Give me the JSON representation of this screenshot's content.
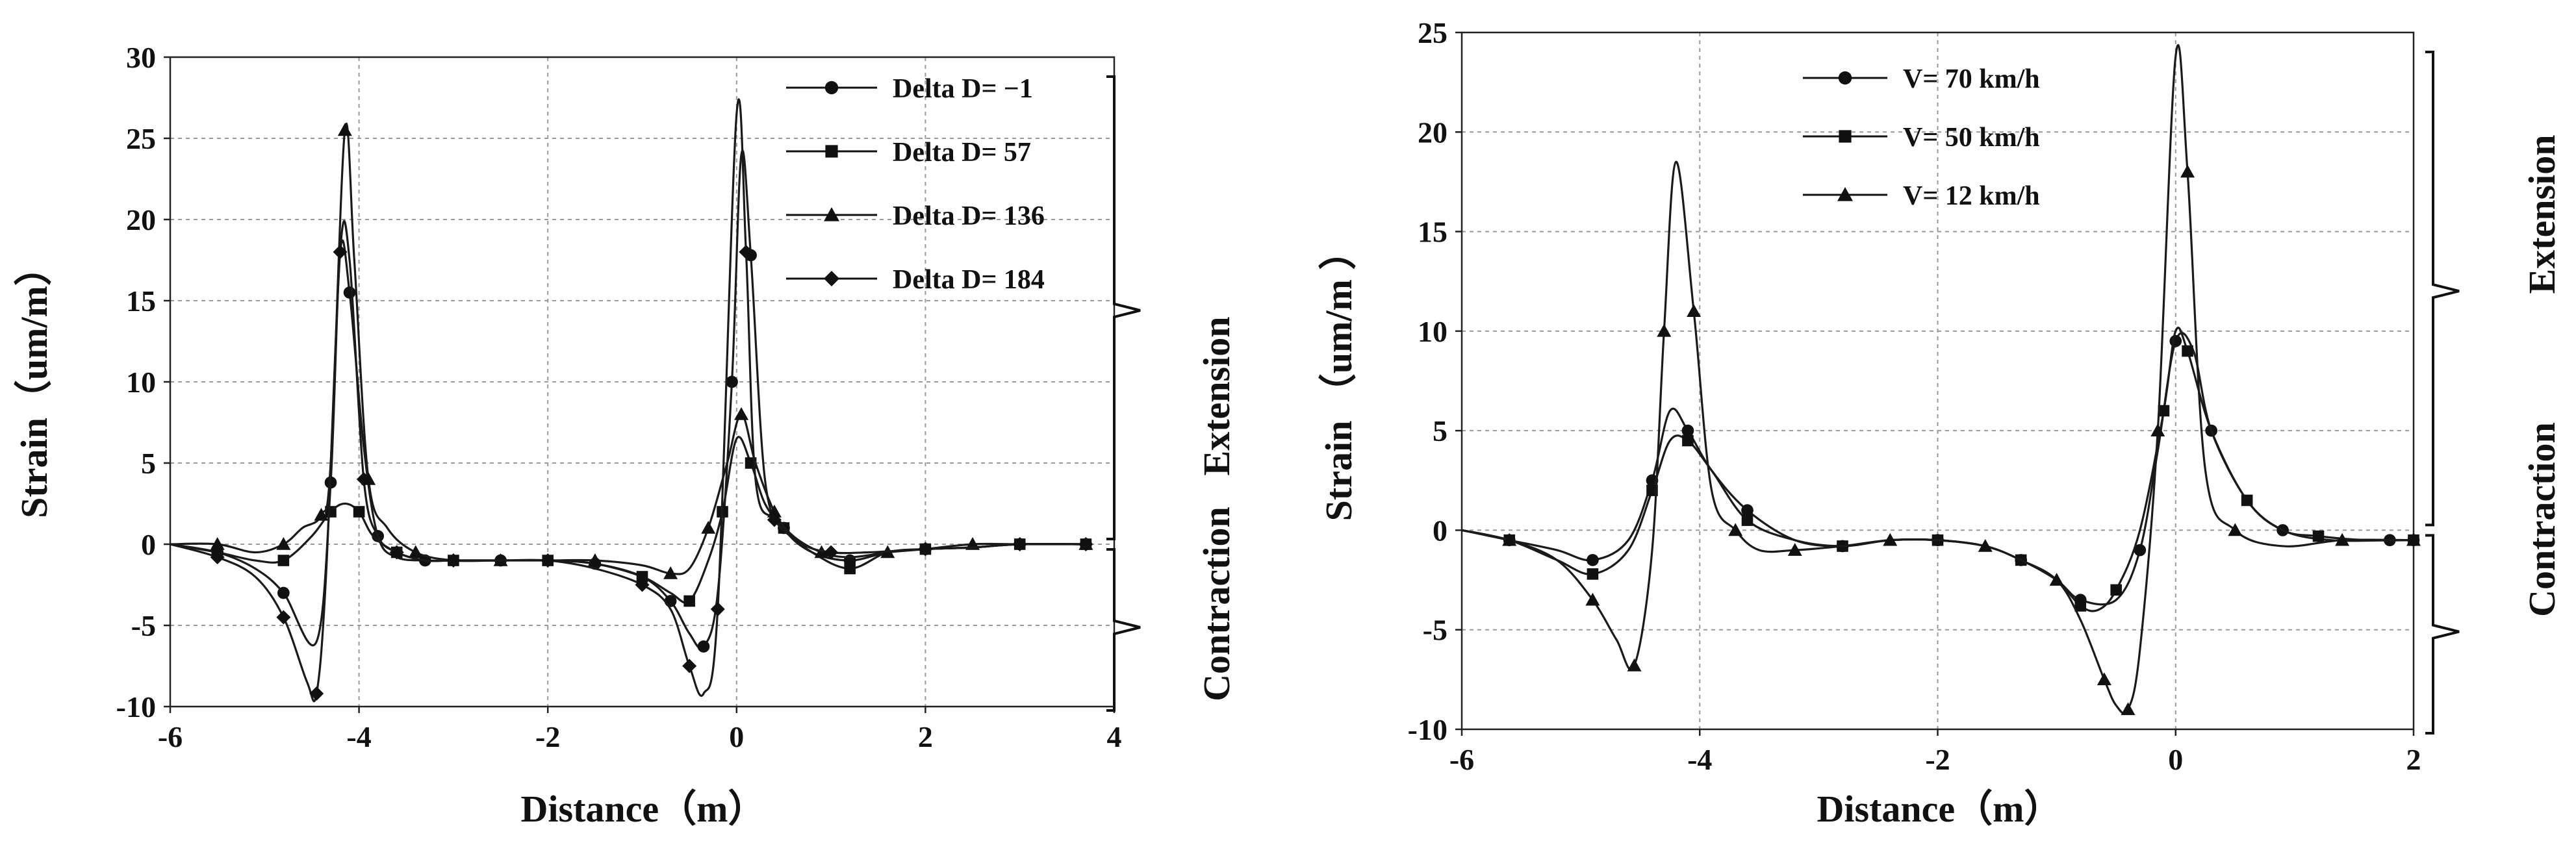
{
  "chart_data": [
    {
      "type": "line",
      "title": "",
      "xlabel": "Distance（m）",
      "ylabel": "Strain（um/m）",
      "xlim": [
        -6,
        4
      ],
      "ylim": [
        -10,
        30
      ],
      "x_ticks": [
        "-6",
        "-4",
        "-2",
        "0",
        "2",
        "4"
      ],
      "y_ticks": [
        "-10",
        "-5",
        "0",
        "5",
        "10",
        "15",
        "20",
        "25",
        "30"
      ],
      "grid": true,
      "legend_position": "top-right",
      "annotations": [
        "Extension",
        "Contraction"
      ],
      "series": [
        {
          "name": "Delta D= −1",
          "marker": "circle",
          "x": [
            -6.0,
            -5.5,
            -5.1,
            -4.8,
            -4.45,
            -4.3,
            -4.2,
            -4.1,
            -3.95,
            -3.8,
            -3.6,
            -3.3,
            -3.0,
            -2.5,
            -2.0,
            -1.5,
            -1.0,
            -0.7,
            -0.5,
            -0.35,
            -0.2,
            -0.05,
            0.05,
            0.15,
            0.3,
            0.5,
            0.8,
            1.2,
            1.6,
            2.0,
            2.5,
            3.0,
            3.7
          ],
          "y": [
            0,
            -0.5,
            -1.5,
            -3.0,
            -6.0,
            3.8,
            18.0,
            15.5,
            6.0,
            0.5,
            -0.8,
            -1.0,
            -1.0,
            -1.0,
            -1.0,
            -1.2,
            -2.0,
            -3.5,
            -5.5,
            -6.3,
            -3.0,
            10.0,
            24.0,
            17.8,
            4.0,
            1.0,
            -0.5,
            -1.0,
            -0.5,
            -0.3,
            -0.2,
            0,
            0
          ]
        },
        {
          "name": "Delta D= 57",
          "marker": "square",
          "x": [
            -6.0,
            -5.5,
            -5.1,
            -4.8,
            -4.5,
            -4.3,
            -4.15,
            -4.0,
            -3.85,
            -3.6,
            -3.3,
            -3.0,
            -2.5,
            -2.0,
            -1.5,
            -1.0,
            -0.7,
            -0.5,
            -0.3,
            -0.15,
            0.0,
            0.15,
            0.3,
            0.5,
            0.8,
            1.2,
            1.6,
            2.0,
            2.5,
            3.0,
            3.7
          ],
          "y": [
            0,
            -0.5,
            -1.0,
            -1.0,
            0.5,
            2.0,
            2.5,
            2.0,
            0.5,
            -0.5,
            -1.0,
            -1.0,
            -1.0,
            -1.0,
            -1.2,
            -2.0,
            -3.0,
            -3.5,
            -1.0,
            2.0,
            6.5,
            5.0,
            2.5,
            1.0,
            -0.5,
            -1.5,
            -0.5,
            -0.3,
            -0.2,
            0,
            0
          ]
        },
        {
          "name": "Delta D= 136",
          "marker": "triangle",
          "x": [
            -6.0,
            -5.5,
            -5.1,
            -4.8,
            -4.6,
            -4.4,
            -4.3,
            -4.15,
            -4.05,
            -3.9,
            -3.7,
            -3.4,
            -3.0,
            -2.5,
            -2.0,
            -1.5,
            -1.0,
            -0.7,
            -0.5,
            -0.3,
            -0.1,
            0.05,
            0.2,
            0.4,
            0.6,
            0.9,
            1.2,
            1.6,
            2.0,
            2.5,
            3.0,
            3.7
          ],
          "y": [
            0,
            0,
            -0.5,
            0,
            1.0,
            1.8,
            5.0,
            25.5,
            17.5,
            4.0,
            1.0,
            -0.5,
            -1.0,
            -1.0,
            -1.0,
            -1.0,
            -1.3,
            -1.8,
            -1.5,
            1.0,
            5.0,
            8.0,
            5.0,
            2.0,
            0.5,
            -0.5,
            -0.8,
            -0.5,
            -0.3,
            0,
            0,
            0
          ]
        },
        {
          "name": "Delta D= 184",
          "marker": "diamond",
          "x": [
            -6.0,
            -5.5,
            -5.1,
            -4.8,
            -4.55,
            -4.45,
            -4.35,
            -4.2,
            -4.1,
            -3.95,
            -3.8,
            -3.6,
            -3.3,
            -3.0,
            -2.5,
            -2.0,
            -1.5,
            -1.0,
            -0.7,
            -0.5,
            -0.35,
            -0.2,
            0.0,
            0.1,
            0.2,
            0.4,
            0.7,
            1.0,
            1.4,
            2.0,
            2.5,
            3.0,
            3.7
          ],
          "y": [
            0,
            -0.8,
            -2.0,
            -4.5,
            -8.5,
            -9.2,
            -2.0,
            18.0,
            17.5,
            4.0,
            0.5,
            -0.5,
            -1.0,
            -1.0,
            -1.0,
            -1.0,
            -1.5,
            -2.5,
            -4.0,
            -7.5,
            -9.2,
            -4.0,
            26.5,
            18.0,
            4.0,
            1.5,
            0,
            -0.5,
            -0.5,
            -0.3,
            -0.2,
            0,
            0
          ]
        }
      ]
    },
    {
      "type": "line",
      "title": "",
      "xlabel": "Distance（m）",
      "ylabel": "Strain （um/m ）",
      "xlim": [
        -6,
        2
      ],
      "ylim": [
        -10,
        25
      ],
      "x_ticks": [
        "-6",
        "-4",
        "-2",
        "0",
        "2"
      ],
      "y_ticks": [
        "-10",
        "-5",
        "0",
        "5",
        "10",
        "15",
        "20",
        "25"
      ],
      "grid": true,
      "legend_position": "top-left",
      "annotations": [
        "Extension",
        "Contraction"
      ],
      "series": [
        {
          "name": "V= 70 km/h",
          "marker": "circle",
          "x": [
            -6.0,
            -5.6,
            -5.2,
            -4.9,
            -4.6,
            -4.4,
            -4.25,
            -4.1,
            -3.9,
            -3.6,
            -3.2,
            -2.8,
            -2.4,
            -2.0,
            -1.6,
            -1.3,
            -1.0,
            -0.8,
            -0.5,
            -0.3,
            -0.15,
            0.0,
            0.15,
            0.3,
            0.6,
            0.9,
            1.3,
            1.8,
            2.0
          ],
          "y": [
            0,
            -0.5,
            -1.0,
            -1.5,
            -0.5,
            2.5,
            6.0,
            5.0,
            3.0,
            1.0,
            -0.5,
            -0.8,
            -0.5,
            -0.5,
            -0.8,
            -1.5,
            -2.5,
            -3.5,
            -3.5,
            -1.0,
            4.0,
            9.5,
            9.0,
            5.0,
            1.5,
            0,
            -0.5,
            -0.5,
            -0.5
          ]
        },
        {
          "name": "V= 50 km/h",
          "marker": "square",
          "x": [
            -6.0,
            -5.6,
            -5.2,
            -4.9,
            -4.6,
            -4.4,
            -4.25,
            -4.1,
            -3.9,
            -3.6,
            -3.2,
            -2.8,
            -2.4,
            -2.0,
            -1.6,
            -1.3,
            -1.0,
            -0.8,
            -0.65,
            -0.5,
            -0.3,
            -0.1,
            0.0,
            0.1,
            0.3,
            0.6,
            0.9,
            1.2,
            1.6,
            2.0
          ],
          "y": [
            0,
            -0.5,
            -1.5,
            -2.2,
            -1.0,
            2.0,
            4.5,
            4.5,
            3.0,
            0.5,
            -0.5,
            -0.8,
            -0.5,
            -0.5,
            -0.8,
            -1.5,
            -2.5,
            -3.8,
            -4.0,
            -3.0,
            0,
            6.0,
            10.0,
            9.0,
            5.0,
            1.5,
            0,
            -0.3,
            -0.5,
            -0.5
          ]
        },
        {
          "name": "V= 12 km/h",
          "marker": "triangle",
          "x": [
            -6.0,
            -5.6,
            -5.2,
            -4.9,
            -4.7,
            -4.55,
            -4.4,
            -4.3,
            -4.2,
            -4.05,
            -3.9,
            -3.7,
            -3.5,
            -3.2,
            -2.8,
            -2.4,
            -2.0,
            -1.6,
            -1.3,
            -1.0,
            -0.8,
            -0.6,
            -0.5,
            -0.4,
            -0.3,
            -0.15,
            0.0,
            0.1,
            0.25,
            0.5,
            0.9,
            1.4,
            2.0
          ],
          "y": [
            0,
            -0.5,
            -1.5,
            -3.5,
            -5.5,
            -6.8,
            -1.0,
            10.0,
            18.5,
            11.0,
            2.0,
            0,
            -1.0,
            -1.0,
            -0.8,
            -0.5,
            -0.5,
            -0.8,
            -1.5,
            -2.5,
            -4.5,
            -7.5,
            -8.8,
            -9.0,
            -6.0,
            5.0,
            23.8,
            18.0,
            3.0,
            0,
            -0.8,
            -0.5,
            -0.5
          ]
        }
      ]
    }
  ]
}
